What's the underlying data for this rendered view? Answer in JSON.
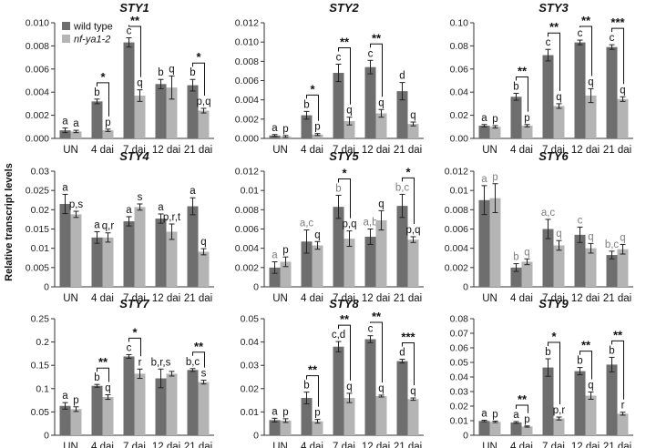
{
  "figure": {
    "y_axis_label": "Relative transcript levels",
    "legend": [
      {
        "label": "wild type",
        "color": "#6e6e6e"
      },
      {
        "label": "nf-ya1-2",
        "color": "#b4b4b4"
      }
    ],
    "colors": {
      "wild_type": "#6e6e6e",
      "mutant": "#b4b4b4",
      "grey_letter": "#7f7f7f"
    }
  },
  "chart_data": [
    {
      "type": "bar",
      "title": "STY1",
      "categories": [
        "UN",
        "4 dai",
        "7 dai",
        "12 dai",
        "21 dai"
      ],
      "ylim": [
        0,
        0.01
      ],
      "yticks": [
        "0.000",
        "0.002",
        "0.004",
        "0.006",
        "0.008",
        "0.010"
      ],
      "ytick_values": [
        0,
        0.002,
        0.004,
        0.006,
        0.008,
        0.01
      ],
      "series": [
        {
          "name": "wild type",
          "values": [
            0.0007,
            0.0032,
            0.0083,
            0.0047,
            0.0046
          ],
          "errors": [
            0.0002,
            0.0002,
            0.0004,
            0.0004,
            0.0005
          ],
          "letters": [
            "a",
            "b",
            "c",
            "b",
            "b"
          ]
        },
        {
          "name": "nf-ya1-2",
          "values": [
            0.0006,
            0.0007,
            0.0037,
            0.0044,
            0.0024
          ],
          "errors": [
            0.0001,
            0.0001,
            0.0005,
            0.001,
            0.0002
          ],
          "letters": [
            "a",
            "p",
            "q",
            "q",
            "p,q"
          ]
        }
      ],
      "significance": [
        {
          "category": 1,
          "label": "*"
        },
        {
          "category": 2,
          "label": "**"
        },
        {
          "category": 4,
          "label": "*"
        }
      ]
    },
    {
      "type": "bar",
      "title": "STY2",
      "categories": [
        "UN",
        "4 dai",
        "7 dai",
        "12 dai",
        "21 dai"
      ],
      "ylim": [
        0,
        0.012
      ],
      "yticks": [
        "0.000",
        "0.002",
        "0.004",
        "0.006",
        "0.008",
        "0.010",
        "0.012"
      ],
      "ytick_values": [
        0,
        0.002,
        0.004,
        0.006,
        0.008,
        0.01,
        0.012
      ],
      "series": [
        {
          "name": "wild type",
          "values": [
            0.0003,
            0.0024,
            0.0068,
            0.0074,
            0.0049
          ],
          "errors": [
            0.0001,
            0.0004,
            0.0009,
            0.0007,
            0.0009
          ],
          "letters": [
            "a",
            "b",
            "c",
            "c",
            "d"
          ]
        },
        {
          "name": "nf-ya1-2",
          "values": [
            0.0002,
            0.0004,
            0.0018,
            0.0026,
            0.0015
          ],
          "errors": [
            0.0001,
            0.0001,
            0.0004,
            0.0004,
            0.0002
          ],
          "letters": [
            "p",
            "p",
            "q",
            "q",
            "q"
          ]
        }
      ],
      "significance": [
        {
          "category": 1,
          "label": "*"
        },
        {
          "category": 2,
          "label": "**"
        },
        {
          "category": 3,
          "label": "**"
        }
      ]
    },
    {
      "type": "bar",
      "title": "STY3",
      "categories": [
        "UN",
        "4 dai",
        "7 dai",
        "12 dai",
        "21 dai"
      ],
      "ylim": [
        0,
        0.1
      ],
      "yticks": [
        "0.00",
        "0.02",
        "0.04",
        "0.06",
        "0.08",
        "0.10"
      ],
      "ytick_values": [
        0,
        0.02,
        0.04,
        0.06,
        0.08,
        0.1
      ],
      "series": [
        {
          "name": "wild type",
          "values": [
            0.011,
            0.036,
            0.072,
            0.083,
            0.079
          ],
          "errors": [
            0.001,
            0.003,
            0.005,
            0.002,
            0.002
          ],
          "letters": [
            "a",
            "b",
            "c",
            "c",
            "c"
          ]
        },
        {
          "name": "nf-ya1-2",
          "values": [
            0.01,
            0.011,
            0.028,
            0.037,
            0.034
          ],
          "errors": [
            0.001,
            0.001,
            0.002,
            0.006,
            0.002
          ],
          "letters": [
            "p",
            "p",
            "q",
            "q",
            "q"
          ]
        }
      ],
      "significance": [
        {
          "category": 1,
          "label": "**"
        },
        {
          "category": 2,
          "label": "**"
        },
        {
          "category": 3,
          "label": "**"
        },
        {
          "category": 4,
          "label": "***"
        }
      ]
    },
    {
      "type": "bar",
      "title": "STY4",
      "categories": [
        "UN",
        "4 dai",
        "7 dai",
        "12 dai",
        "21 dai"
      ],
      "ylim": [
        0,
        0.03
      ],
      "yticks": [
        "0",
        "0.005",
        "0.01",
        "0.015",
        "0.02",
        "0.025",
        "0.03"
      ],
      "ytick_values": [
        0,
        0.005,
        0.01,
        0.015,
        0.02,
        0.025,
        0.03
      ],
      "series": [
        {
          "name": "wild type",
          "values": [
            0.0215,
            0.0128,
            0.017,
            0.0177,
            0.0209
          ],
          "errors": [
            0.0025,
            0.0015,
            0.0012,
            0.0012,
            0.0022
          ],
          "letters": [
            "a",
            "a",
            "a",
            "a",
            "a"
          ]
        },
        {
          "name": "nf-ya1-2",
          "values": [
            0.0188,
            0.0128,
            0.0207,
            0.0143,
            0.0091
          ],
          "errors": [
            0.0008,
            0.0012,
            0.0008,
            0.002,
            0.0008
          ],
          "letters": [
            "p,s",
            "q,r",
            "s",
            "p,r,t",
            "q"
          ]
        }
      ],
      "significance": []
    },
    {
      "type": "bar",
      "title": "STY5",
      "categories": [
        "UN",
        "4 dai",
        "7 dai",
        "12 dai",
        "21 dai"
      ],
      "ylim": [
        0,
        0.012
      ],
      "yticks": [
        "0",
        "0.002",
        "0.004",
        "0.006",
        "0.008",
        "0.01",
        "0.012"
      ],
      "ytick_values": [
        0,
        0.002,
        0.004,
        0.006,
        0.008,
        0.01,
        0.012
      ],
      "series": [
        {
          "name": "wild type",
          "values": [
            0.002,
            0.0047,
            0.0083,
            0.0052,
            0.0084
          ],
          "errors": [
            0.0006,
            0.0012,
            0.0012,
            0.0008,
            0.0012
          ],
          "letters": [
            "a",
            "a,c",
            "b",
            "a,b",
            "b,c"
          ]
        },
        {
          "name": "nf-ya1-2",
          "values": [
            0.0026,
            0.0043,
            0.005,
            0.0069,
            0.0049
          ],
          "errors": [
            0.0005,
            0.0004,
            0.0008,
            0.001,
            0.0003
          ],
          "letters": [
            "p",
            "q",
            "p,q",
            "q",
            "p,q"
          ]
        }
      ],
      "significance": [
        {
          "category": 2,
          "label": "*"
        },
        {
          "category": 4,
          "label": "*"
        }
      ]
    },
    {
      "type": "bar",
      "title": "STY6",
      "categories": [
        "UN",
        "4 dai",
        "7 dai",
        "12 dai",
        "21 dai"
      ],
      "ylim": [
        0,
        0.012
      ],
      "yticks": [
        "0",
        "0.002",
        "0.004",
        "0.006",
        "0.008",
        "0.01",
        "0.012"
      ],
      "ytick_values": [
        0,
        0.002,
        0.004,
        0.006,
        0.008,
        0.01,
        0.012
      ],
      "series": [
        {
          "name": "wild type",
          "values": [
            0.009,
            0.002,
            0.006,
            0.0054,
            0.0033
          ],
          "errors": [
            0.0015,
            0.0004,
            0.001,
            0.0008,
            0.0004
          ],
          "letters": [
            "a",
            "b",
            "a,c",
            "c",
            "b,c"
          ]
        },
        {
          "name": "nf-ya1-2",
          "values": [
            0.0092,
            0.0026,
            0.0043,
            0.004,
            0.0039
          ],
          "errors": [
            0.0015,
            0.0003,
            0.0005,
            0.0005,
            0.0005
          ],
          "letters": [
            "p",
            "q",
            "q",
            "q",
            "q"
          ]
        }
      ],
      "significance": []
    },
    {
      "type": "bar",
      "title": "STY7",
      "categories": [
        "UN",
        "4 dai",
        "7 dai",
        "12 dai",
        "21 dai"
      ],
      "ylim": [
        0,
        0.25
      ],
      "yticks": [
        "0",
        "0.05",
        "0.1",
        "0.15",
        "0.2",
        "0.25"
      ],
      "ytick_values": [
        0,
        0.05,
        0.1,
        0.15,
        0.2,
        0.25
      ],
      "series": [
        {
          "name": "wild type",
          "values": [
            0.063,
            0.106,
            0.169,
            0.122,
            0.14
          ],
          "errors": [
            0.007,
            0.003,
            0.004,
            0.02,
            0.003
          ],
          "letters": [
            "a",
            "b",
            "c",
            "b,r,s",
            "b,c"
          ]
        },
        {
          "name": "nf-ya1-2",
          "values": [
            0.056,
            0.082,
            0.132,
            0.132,
            0.114
          ],
          "errors": [
            0.005,
            0.005,
            0.01,
            0.005,
            0.004
          ],
          "letters": [
            "p",
            "q",
            "r",
            "",
            "s"
          ]
        }
      ],
      "significance": [
        {
          "category": 1,
          "label": "**"
        },
        {
          "category": 2,
          "label": "*"
        },
        {
          "category": 4,
          "label": "**"
        }
      ]
    },
    {
      "type": "bar",
      "title": "STY8",
      "categories": [
        "UN",
        "4 dai",
        "7 dai",
        "12 dai",
        "21 dai"
      ],
      "ylim": [
        0,
        0.05
      ],
      "yticks": [
        "0",
        "0.01",
        "0.02",
        "0.03",
        "0.04",
        "0.05"
      ],
      "ytick_values": [
        0,
        0.01,
        0.02,
        0.03,
        0.04,
        0.05
      ],
      "series": [
        {
          "name": "wild type",
          "values": [
            0.0065,
            0.016,
            0.038,
            0.0412,
            0.0318
          ],
          "errors": [
            0.0008,
            0.0025,
            0.0022,
            0.0015,
            0.0008
          ],
          "letters": [
            "a",
            "b",
            "c,d",
            "c",
            "d"
          ]
        },
        {
          "name": "nf-ya1-2",
          "values": [
            0.0063,
            0.006,
            0.016,
            0.0168,
            0.0155
          ],
          "errors": [
            0.0008,
            0.0008,
            0.002,
            0.0004,
            0.0005
          ],
          "letters": [
            "p",
            "p",
            "q",
            "q",
            "q"
          ]
        }
      ],
      "significance": [
        {
          "category": 1,
          "label": "**"
        },
        {
          "category": 2,
          "label": "**"
        },
        {
          "category": 3,
          "label": "**"
        },
        {
          "category": 4,
          "label": "***"
        }
      ]
    },
    {
      "type": "bar",
      "title": "STY9",
      "categories": [
        "UN",
        "4 dai",
        "7 dai",
        "12 dai",
        "21 dai"
      ],
      "ylim": [
        0,
        0.08
      ],
      "yticks": [
        "0",
        "0.01",
        "0.02",
        "0.03",
        "0.04",
        "0.05",
        "0.06",
        "0.07",
        "0.08"
      ],
      "ytick_values": [
        0,
        0.01,
        0.02,
        0.03,
        0.04,
        0.05,
        0.06,
        0.07,
        0.08
      ],
      "series": [
        {
          "name": "wild type",
          "values": [
            0.0098,
            0.0088,
            0.0465,
            0.044,
            0.0485
          ],
          "errors": [
            0.0005,
            0.0006,
            0.006,
            0.0025,
            0.005
          ],
          "letters": [
            "a",
            "a",
            "b",
            "b",
            "b"
          ]
        },
        {
          "name": "nf-ya1-2",
          "values": [
            0.0092,
            0.006,
            0.0115,
            0.0272,
            0.0148
          ],
          "errors": [
            0.0005,
            0.0004,
            0.001,
            0.0025,
            0.001
          ],
          "letters": [
            "p",
            "p",
            "p,r",
            "q",
            "r"
          ]
        }
      ],
      "significance": [
        {
          "category": 1,
          "label": "**"
        },
        {
          "category": 2,
          "label": "*"
        },
        {
          "category": 3,
          "label": "**"
        },
        {
          "category": 4,
          "label": "**"
        }
      ]
    }
  ]
}
